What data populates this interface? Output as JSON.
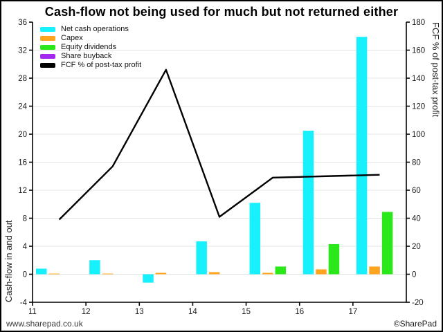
{
  "title": "Cash-flow not being used for much but not returned either",
  "footer": {
    "left": "www.sharepad.co.uk",
    "right": "©SharePad"
  },
  "colors": {
    "net_cash_operations": "#17F1FD",
    "capex": "#FFA41E",
    "equity_dividends": "#2BE81A",
    "share_buyback": "#A428F0",
    "fcf_line": "#000000",
    "gridline": "#E4E4E4",
    "axis": "#000000"
  },
  "chart_data": {
    "type": "bar",
    "subtype": "grouped bars with overlaid line",
    "categories": [
      11,
      12,
      13,
      14,
      15,
      16,
      17
    ],
    "x_axis": {
      "min": 11,
      "max": 18,
      "ticks": [
        11,
        12,
        13,
        14,
        15,
        16,
        17
      ]
    },
    "left_axis": {
      "label": "Cash-flow in and out",
      "min": -4,
      "max": 36,
      "ticks": [
        -4,
        0,
        4,
        8,
        12,
        16,
        20,
        24,
        28,
        32,
        36
      ]
    },
    "right_axis": {
      "label": "FCF % of post-tax profit",
      "min": -20,
      "max": 180,
      "ticks": [
        -20,
        0,
        20,
        40,
        60,
        80,
        100,
        120,
        140,
        160,
        180
      ]
    },
    "grid": "horizontal only",
    "legend_position": "top-left inside plot",
    "series": [
      {
        "name": "Net cash operations",
        "type": "bar",
        "axis": "left",
        "color": "#17F1FD",
        "values": [
          0.8,
          2.0,
          -1.2,
          4.7,
          10.2,
          20.5,
          33.9
        ]
      },
      {
        "name": "Capex",
        "type": "bar",
        "axis": "left",
        "color": "#FFA41E",
        "values": [
          0.05,
          0.05,
          0.2,
          0.3,
          0.2,
          0.7,
          1.1
        ]
      },
      {
        "name": "Equity dividends",
        "type": "bar",
        "axis": "left",
        "color": "#2BE81A",
        "values": [
          0,
          0,
          0,
          0,
          1.1,
          4.3,
          8.9
        ]
      },
      {
        "name": "Share buyback",
        "type": "bar",
        "axis": "left",
        "color": "#A428F0",
        "values": [
          0,
          0,
          0,
          0,
          0,
          0,
          0
        ]
      },
      {
        "name": "FCF % of post-tax profit",
        "type": "line",
        "axis": "right",
        "color": "#000000",
        "values": [
          39,
          77,
          146,
          41,
          69,
          70,
          71
        ]
      }
    ]
  }
}
